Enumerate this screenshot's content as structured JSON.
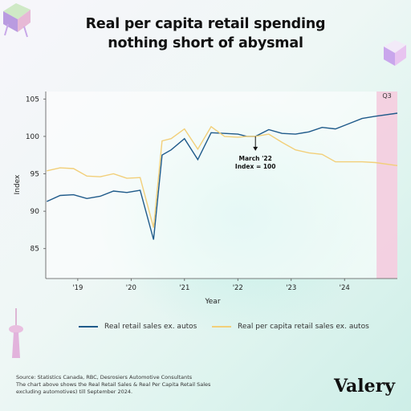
{
  "title_line1": "Real per capita retail spending",
  "title_line2": "nothing short of abysmal",
  "legend": {
    "series1": "Real retail sales ex. autos",
    "series2": "Real per capita retail sales ex. autos"
  },
  "footer": {
    "line1": "Source: Statistics Canada, RBC, Desrosiers Automotive Consultants",
    "line2": "The chart above shows the Real Retail Sales & Real Per Capita Retail Sales",
    "line3": "excluding automotives) till September 2024."
  },
  "brand": "Valery",
  "colors": {
    "series1": "#1f5a8a",
    "series2": "#f2cf79",
    "highlight": "#f3c9dd"
  },
  "chart_data": {
    "type": "line",
    "ylabel": "Index",
    "xlabel": "Year",
    "ylim": [
      81,
      106
    ],
    "yticks": [
      85,
      90,
      95,
      100,
      105
    ],
    "xlim": [
      2018.4,
      2024.99
    ],
    "xticks": [
      {
        "value": 2019.0,
        "label": "'19"
      },
      {
        "value": 2020.0,
        "label": "'20"
      },
      {
        "value": 2021.0,
        "label": "'21"
      },
      {
        "value": 2022.0,
        "label": "'22"
      },
      {
        "value": 2023.0,
        "label": "'23"
      },
      {
        "value": 2024.0,
        "label": "'24"
      }
    ],
    "highlight": {
      "from": 2024.6,
      "to": 2024.99,
      "label": "Q3"
    },
    "annotation": {
      "x": 2022.33,
      "y": 100,
      "line1": "March '22",
      "line2": "Index = 100"
    },
    "series": [
      {
        "name": "Real retail sales ex. autos",
        "x": [
          2018.42,
          2018.67,
          2018.92,
          2019.17,
          2019.42,
          2019.67,
          2019.92,
          2020.17,
          2020.42,
          2020.58,
          2020.75,
          2021.0,
          2021.25,
          2021.5,
          2021.75,
          2022.0,
          2022.17,
          2022.33,
          2022.58,
          2022.83,
          2023.08,
          2023.33,
          2023.58,
          2023.83,
          2024.08,
          2024.33,
          2024.58,
          2024.99
        ],
        "y": [
          91.3,
          92.1,
          92.2,
          91.7,
          92.0,
          92.7,
          92.5,
          92.8,
          86.2,
          97.5,
          98.2,
          99.7,
          96.9,
          100.5,
          100.4,
          100.3,
          100.0,
          100.0,
          100.9,
          100.4,
          100.3,
          100.6,
          101.2,
          101.0,
          101.7,
          102.4,
          102.7,
          103.1
        ]
      },
      {
        "name": "Real per capita retail sales ex. autos",
        "x": [
          2018.42,
          2018.67,
          2018.92,
          2019.17,
          2019.42,
          2019.67,
          2019.92,
          2020.17,
          2020.42,
          2020.58,
          2020.75,
          2021.0,
          2021.25,
          2021.5,
          2021.75,
          2022.0,
          2022.17,
          2022.33,
          2022.58,
          2022.83,
          2023.08,
          2023.33,
          2023.58,
          2023.83,
          2024.08,
          2024.33,
          2024.58,
          2024.99
        ],
        "y": [
          95.4,
          95.8,
          95.7,
          94.7,
          94.6,
          95.0,
          94.4,
          94.5,
          87.8,
          99.4,
          99.7,
          101.0,
          98.3,
          101.3,
          100.0,
          99.9,
          100.0,
          100.0,
          100.3,
          99.2,
          98.2,
          97.8,
          97.6,
          96.6,
          96.6,
          96.6,
          96.5,
          96.1
        ]
      }
    ]
  }
}
